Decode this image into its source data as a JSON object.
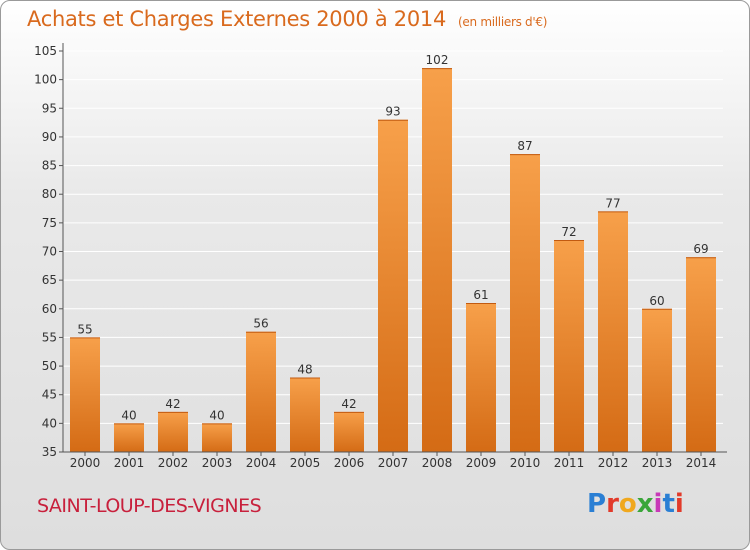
{
  "header": {
    "title": "Achats et Charges Externes 2000 à 2014",
    "unit": "(en milliers d'€)"
  },
  "footer": {
    "commune": "SAINT-LOUP-DES-VIGNES",
    "logo_text": "Proxiti",
    "logo_colors": [
      "#2a7fd4",
      "#e23a2a",
      "#f0a81e",
      "#3aa63a",
      "#c83ab8",
      "#2a7fd4",
      "#e23a2a"
    ]
  },
  "colors": {
    "bar_light": "#f7a04a",
    "bar_dark": "#d46b15",
    "axis": "#555555",
    "grid": "#ffffff",
    "title": "#d96a1e",
    "commune": "#c8203c"
  },
  "chart_data": {
    "type": "bar",
    "title": "Achats et Charges Externes 2000 à 2014",
    "subtitle": "(en milliers d'€)",
    "xlabel": "",
    "ylabel": "",
    "categories": [
      "2000",
      "2001",
      "2002",
      "2003",
      "2004",
      "2005",
      "2006",
      "2007",
      "2008",
      "2009",
      "2010",
      "2011",
      "2012",
      "2013",
      "2014"
    ],
    "values": [
      55,
      40,
      42,
      40,
      56,
      48,
      42,
      93,
      102,
      61,
      87,
      72,
      77,
      60,
      69
    ],
    "ylim": [
      35,
      105
    ],
    "yticks": [
      35,
      40,
      45,
      50,
      55,
      60,
      65,
      70,
      75,
      80,
      85,
      90,
      95,
      100,
      105
    ],
    "grid": true,
    "data_labels": true
  }
}
